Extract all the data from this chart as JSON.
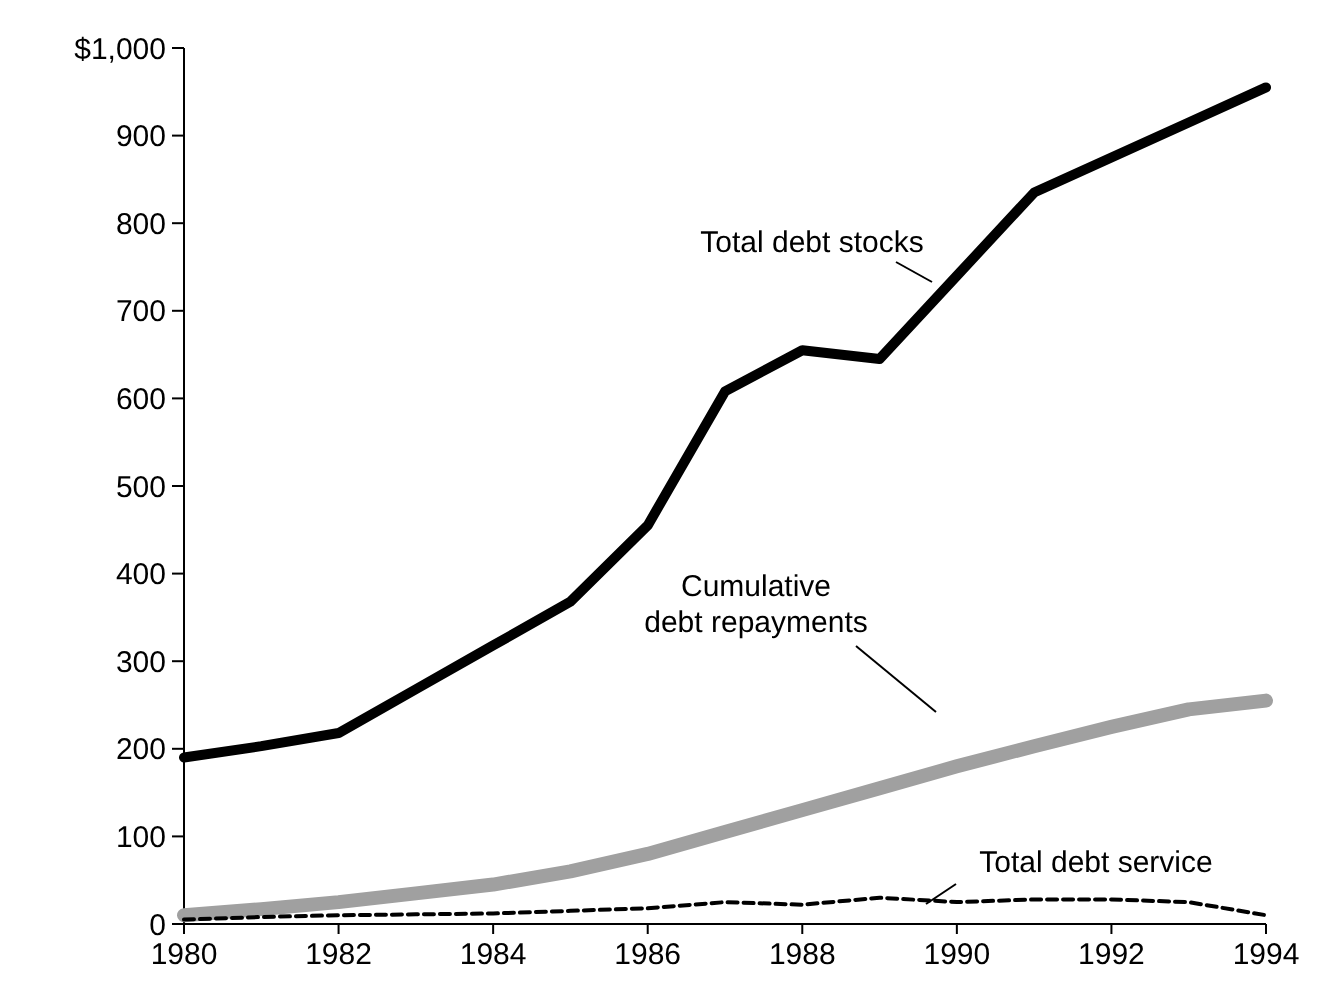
{
  "chart_data": {
    "type": "line",
    "x": [
      1980,
      1981,
      1982,
      1983,
      1984,
      1985,
      1986,
      1987,
      1988,
      1989,
      1990,
      1991,
      1992,
      1993,
      1994
    ],
    "xlim": [
      1980,
      1994
    ],
    "xticks": [
      1980,
      1982,
      1984,
      1986,
      1988,
      1990,
      1992,
      1994
    ],
    "ylim": [
      0,
      1000
    ],
    "yticks": [
      0,
      100,
      200,
      300,
      400,
      500,
      600,
      700,
      800,
      900,
      {
        "value": 1000,
        "label": "$1,000"
      }
    ],
    "grid": false,
    "marker": "none",
    "series": [
      {
        "name": "Total debt stocks",
        "color": "#000000",
        "line_style": "solid",
        "values": [
          190,
          203,
          218,
          268,
          318,
          368,
          455,
          608,
          655,
          645,
          740,
          835,
          875,
          915,
          955
        ]
      },
      {
        "name": "Cumulative\ndebt repayments",
        "color": "#a0a0a0",
        "line_style": "solid",
        "values": [
          10,
          17,
          25,
          35,
          45,
          60,
          80,
          105,
          130,
          155,
          180,
          203,
          225,
          245,
          255
        ]
      },
      {
        "name": "Total debt service",
        "color": "#000000",
        "line_style": "dashed",
        "values": [
          5,
          8,
          10,
          11,
          12,
          15,
          18,
          25,
          22,
          30,
          25,
          28,
          28,
          25,
          10
        ]
      }
    ]
  }
}
